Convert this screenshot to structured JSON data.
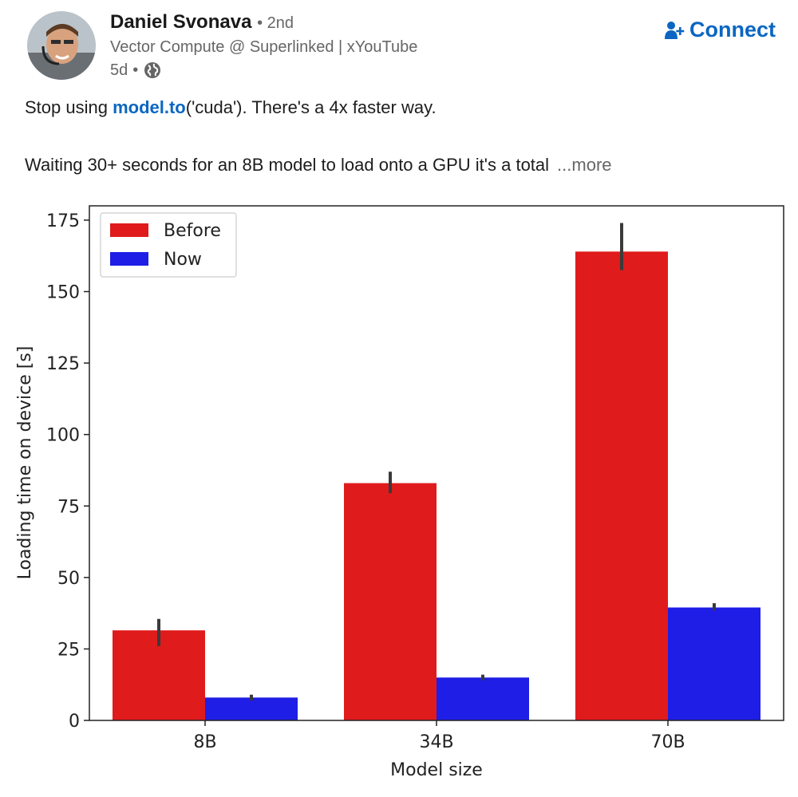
{
  "post": {
    "author": {
      "name": "Daniel Svonava",
      "degree": "• 2nd",
      "headline": "Vector Compute @ Superlinked | xYouTube",
      "time": "5d",
      "visibility_separator": "•",
      "visibility_icon": "globe-icon"
    },
    "connect_label": "Connect",
    "text": {
      "line1_prefix": "Stop using ",
      "line1_link": "model.to",
      "line1_suffix": "('cuda'). There's a 4x faster way.",
      "line2": "Waiting 30+ seconds for an 8B model to load onto a GPU it's a total",
      "more_label": "...more"
    }
  },
  "colors": {
    "before": "#e01b1b",
    "now": "#1e1ee6",
    "error_bar": "#3a3a3a",
    "link": "#0a66c2"
  },
  "chart_data": {
    "type": "bar",
    "categories": [
      "8B",
      "34B",
      "70B"
    ],
    "series": [
      {
        "name": "Before",
        "values": [
          31.5,
          83,
          164
        ],
        "error": [
          [
            26,
            35.5
          ],
          [
            79.5,
            87
          ],
          [
            157.5,
            174
          ]
        ]
      },
      {
        "name": "Now",
        "values": [
          8,
          15,
          39.5
        ],
        "error": [
          [
            7,
            9
          ],
          [
            14,
            16
          ],
          [
            38.5,
            41
          ]
        ]
      }
    ],
    "xlabel": "Model size",
    "ylabel": "Loading time on device [s]",
    "ylim": [
      0,
      180
    ],
    "yticks": [
      0,
      25,
      50,
      75,
      100,
      125,
      150,
      175
    ],
    "legend_position": "top-left",
    "grid": false
  }
}
